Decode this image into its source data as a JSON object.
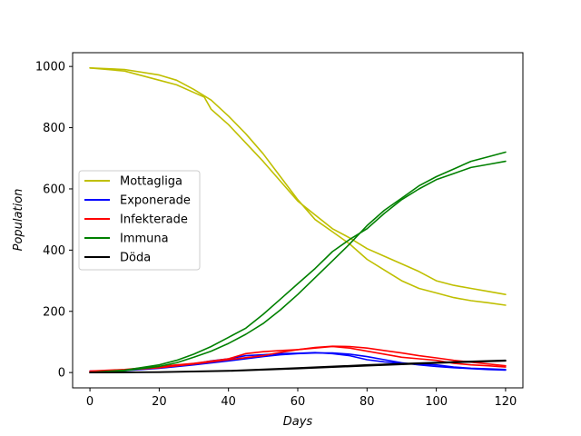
{
  "chart_data": {
    "type": "line",
    "title": "",
    "xlabel": "Days",
    "ylabel": "Population",
    "xlim": [
      -5,
      125
    ],
    "ylim": [
      -50,
      1045
    ],
    "xticks": [
      0,
      20,
      40,
      60,
      80,
      100,
      120
    ],
    "yticks": [
      0,
      200,
      400,
      600,
      800,
      1000
    ],
    "grid": false,
    "legend_position": "center-left",
    "legend": [
      {
        "label": "Mottagliga",
        "color": "#bfbf00"
      },
      {
        "label": "Exponerade",
        "color": "#0000ff"
      },
      {
        "label": "Infekterade",
        "color": "#ff0000"
      },
      {
        "label": "Immuna",
        "color": "#008000"
      },
      {
        "label": "Döda",
        "color": "#000000"
      }
    ],
    "series": [
      {
        "group": "Mottagliga",
        "color": "#bfbf00",
        "x": [
          0,
          10,
          20,
          25,
          30,
          35,
          40,
          45,
          50,
          55,
          60,
          65,
          70,
          75,
          80,
          85,
          90,
          95,
          100,
          105,
          110,
          115,
          120
        ],
        "y": [
          995,
          990,
          972,
          955,
          925,
          890,
          838,
          780,
          715,
          640,
          565,
          500,
          460,
          420,
          370,
          335,
          300,
          275,
          260,
          245,
          235,
          228,
          220
        ]
      },
      {
        "group": "Mottagliga",
        "color": "#bfbf00",
        "x": [
          0,
          10,
          20,
          25,
          30,
          33,
          35,
          40,
          45,
          50,
          55,
          60,
          65,
          70,
          75,
          80,
          85,
          90,
          95,
          100,
          105,
          110,
          115,
          120
        ],
        "y": [
          995,
          985,
          955,
          940,
          915,
          900,
          860,
          810,
          750,
          690,
          625,
          560,
          515,
          470,
          440,
          405,
          380,
          355,
          330,
          300,
          285,
          275,
          265,
          255
        ]
      },
      {
        "group": "Exponerade",
        "color": "#0000ff",
        "x": [
          0,
          10,
          20,
          30,
          35,
          40,
          45,
          50,
          55,
          60,
          65,
          70,
          75,
          80,
          85,
          90,
          95,
          100,
          105,
          110,
          115,
          120
        ],
        "y": [
          5,
          8,
          18,
          28,
          38,
          45,
          55,
          58,
          62,
          63,
          65,
          62,
          55,
          42,
          35,
          30,
          28,
          25,
          18,
          14,
          12,
          10
        ]
      },
      {
        "group": "Exponerade",
        "color": "#0000ff",
        "x": [
          0,
          10,
          20,
          30,
          40,
          50,
          55,
          60,
          65,
          70,
          75,
          80,
          85,
          90,
          95,
          100,
          105,
          110,
          115,
          120
        ],
        "y": [
          4,
          6,
          14,
          25,
          38,
          52,
          58,
          62,
          64,
          64,
          60,
          52,
          42,
          32,
          25,
          20,
          16,
          13,
          10,
          8
        ]
      },
      {
        "group": "Infekterade",
        "color": "#ff0000",
        "x": [
          0,
          10,
          20,
          30,
          40,
          45,
          50,
          55,
          60,
          65,
          70,
          75,
          80,
          85,
          90,
          95,
          100,
          105,
          110,
          115,
          120
        ],
        "y": [
          5,
          10,
          20,
          30,
          45,
          62,
          68,
          72,
          75,
          80,
          85,
          80,
          70,
          60,
          50,
          45,
          40,
          30,
          25,
          22,
          18
        ]
      },
      {
        "group": "Infekterade",
        "color": "#ff0000",
        "x": [
          0,
          10,
          20,
          30,
          40,
          50,
          55,
          60,
          65,
          70,
          75,
          80,
          85,
          90,
          95,
          100,
          105,
          110,
          115,
          120
        ],
        "y": [
          3,
          8,
          16,
          28,
          42,
          55,
          66,
          75,
          82,
          86,
          85,
          80,
          72,
          64,
          55,
          48,
          40,
          34,
          28,
          22
        ]
      },
      {
        "group": "Immuna",
        "color": "#008000",
        "x": [
          0,
          10,
          20,
          25,
          30,
          35,
          40,
          45,
          50,
          55,
          60,
          65,
          70,
          75,
          80,
          85,
          90,
          95,
          100,
          105,
          110,
          115,
          120
        ],
        "y": [
          0,
          8,
          25,
          40,
          60,
          85,
          115,
          145,
          190,
          240,
          290,
          340,
          395,
          435,
          470,
          520,
          565,
          600,
          630,
          650,
          670,
          680,
          690
        ]
      },
      {
        "group": "Immuna",
        "color": "#008000",
        "x": [
          0,
          10,
          20,
          25,
          30,
          35,
          40,
          45,
          50,
          55,
          60,
          65,
          70,
          75,
          80,
          85,
          90,
          95,
          100,
          105,
          110,
          115,
          120
        ],
        "y": [
          0,
          6,
          20,
          32,
          50,
          70,
          95,
          125,
          160,
          205,
          255,
          310,
          365,
          420,
          480,
          530,
          570,
          610,
          640,
          665,
          690,
          705,
          720
        ]
      },
      {
        "group": "Döda",
        "color": "#000000",
        "x": [
          0,
          20,
          40,
          60,
          80,
          100,
          120
        ],
        "y": [
          0,
          2,
          6,
          15,
          25,
          33,
          40
        ]
      },
      {
        "group": "Döda",
        "color": "#000000",
        "x": [
          0,
          20,
          40,
          60,
          80,
          100,
          120
        ],
        "y": [
          0,
          1,
          5,
          13,
          22,
          31,
          38
        ]
      }
    ]
  }
}
